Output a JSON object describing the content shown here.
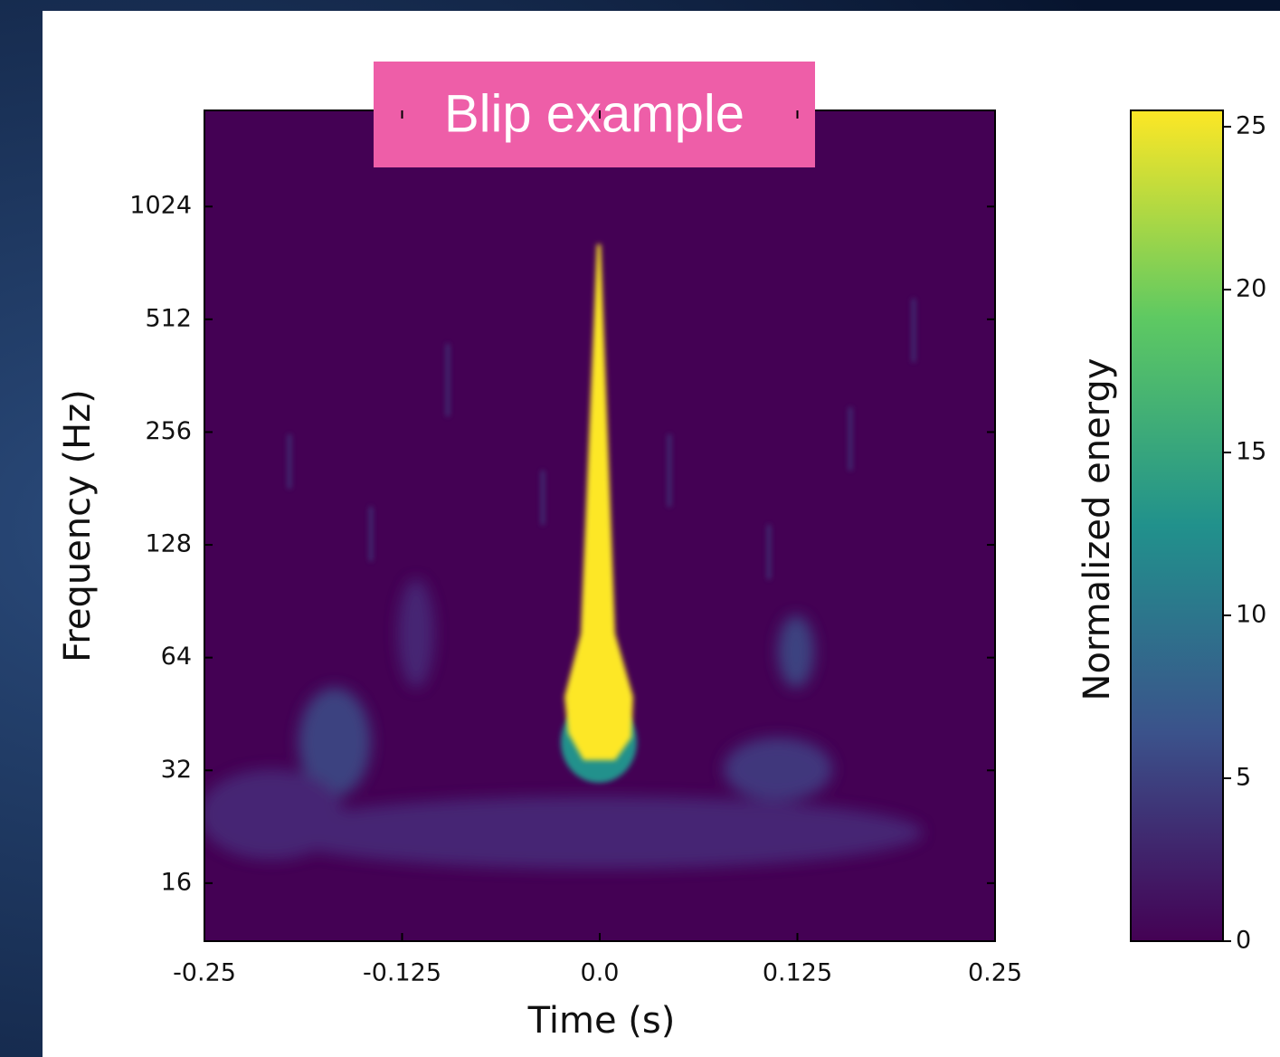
{
  "chart_data": {
    "type": "spectrogram",
    "title": "Blip example",
    "xlabel": "Time (s)",
    "ylabel": "Frequency (Hz)",
    "xlim": [
      -0.25,
      0.25
    ],
    "xticks": [
      -0.25,
      -0.125,
      {
        "value": 0,
        "label": "0.0"
      },
      0.125,
      0.25
    ],
    "yscale": "log",
    "ylim": [
      11.2,
      1849
    ],
    "yticks": [
      16,
      32,
      64,
      128,
      256,
      512,
      1024
    ],
    "colorbar": {
      "label": "Normalized energy",
      "lim": [
        0,
        25.5
      ],
      "ticks": [
        0,
        5,
        10,
        15,
        20,
        25
      ],
      "colormap": [
        "#440154",
        "#3b528b",
        "#21918c",
        "#5ec962",
        "#fde725"
      ]
    }
  }
}
